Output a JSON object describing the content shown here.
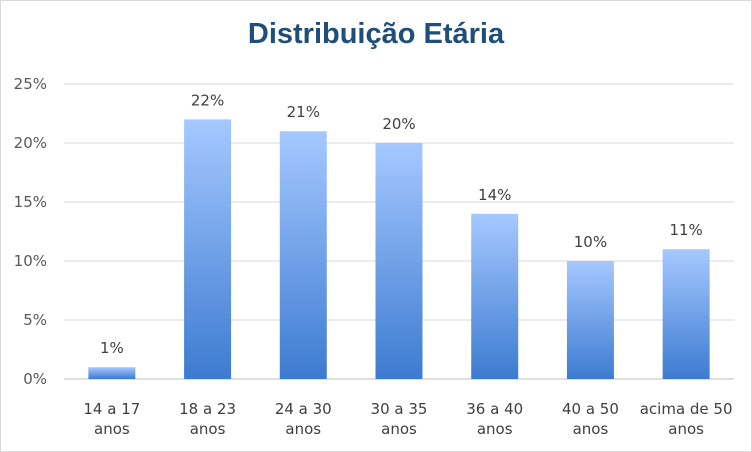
{
  "chart_data": {
    "type": "bar",
    "title": "Distribuição Etária",
    "categories": [
      [
        "14 a 17",
        "anos"
      ],
      [
        "18 a 23",
        "anos"
      ],
      [
        "24 a 30",
        "anos"
      ],
      [
        "30 a 35",
        "anos"
      ],
      [
        "36 a 40",
        "anos"
      ],
      [
        "40 a 50",
        "anos"
      ],
      [
        "acima de 50",
        "anos"
      ]
    ],
    "values": [
      1,
      22,
      21,
      20,
      14,
      10,
      11
    ],
    "data_labels": [
      "1%",
      "22%",
      "21%",
      "20%",
      "14%",
      "10%",
      "11%"
    ],
    "y_ticks": [
      "0%",
      "5%",
      "10%",
      "15%",
      "20%",
      "25%"
    ],
    "ylim": [
      0,
      25
    ],
    "grid": true,
    "colors": {
      "bar_top": "#a6c8ff",
      "bar_bottom": "#3d7bd1",
      "grid": "#d9d9d9",
      "title": "#1f4e79"
    }
  }
}
